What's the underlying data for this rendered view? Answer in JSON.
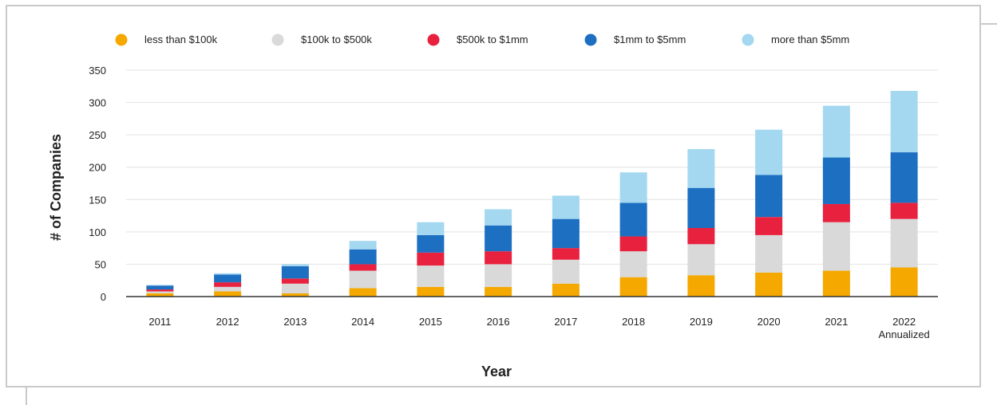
{
  "chart_data": {
    "type": "bar",
    "stacked": true,
    "title": "",
    "xlabel": "Year",
    "ylabel": "# of Companies",
    "ylim": [
      0,
      350
    ],
    "yticks": [
      0,
      50,
      100,
      150,
      200,
      250,
      300,
      350
    ],
    "grid": true,
    "legend_position": "top",
    "categories": [
      "2011",
      "2012",
      "2013",
      "2014",
      "2015",
      "2016",
      "2017",
      "2018",
      "2019",
      "2020",
      "2021",
      "2022\nAnnualized"
    ],
    "series": [
      {
        "name": "less than $100k",
        "color": "#f5a800",
        "values": [
          5,
          8,
          5,
          13,
          15,
          15,
          20,
          30,
          33,
          37,
          40,
          45
        ]
      },
      {
        "name": "$100k to $500k",
        "color": "#d9d9d9",
        "values": [
          3,
          7,
          15,
          27,
          33,
          35,
          37,
          40,
          48,
          58,
          75,
          75
        ]
      },
      {
        "name": "$500k to $1mm",
        "color": "#e8213e",
        "values": [
          3,
          7,
          8,
          10,
          20,
          20,
          18,
          23,
          25,
          28,
          28,
          25
        ]
      },
      {
        "name": "$1mm to $5mm",
        "color": "#1d6fc1",
        "values": [
          6,
          12,
          19,
          23,
          27,
          40,
          45,
          52,
          62,
          65,
          72,
          78
        ]
      },
      {
        "name": "more than $5mm",
        "color": "#a3d8f0",
        "values": [
          1,
          2,
          3,
          13,
          20,
          25,
          36,
          47,
          60,
          70,
          80,
          95
        ]
      }
    ]
  }
}
